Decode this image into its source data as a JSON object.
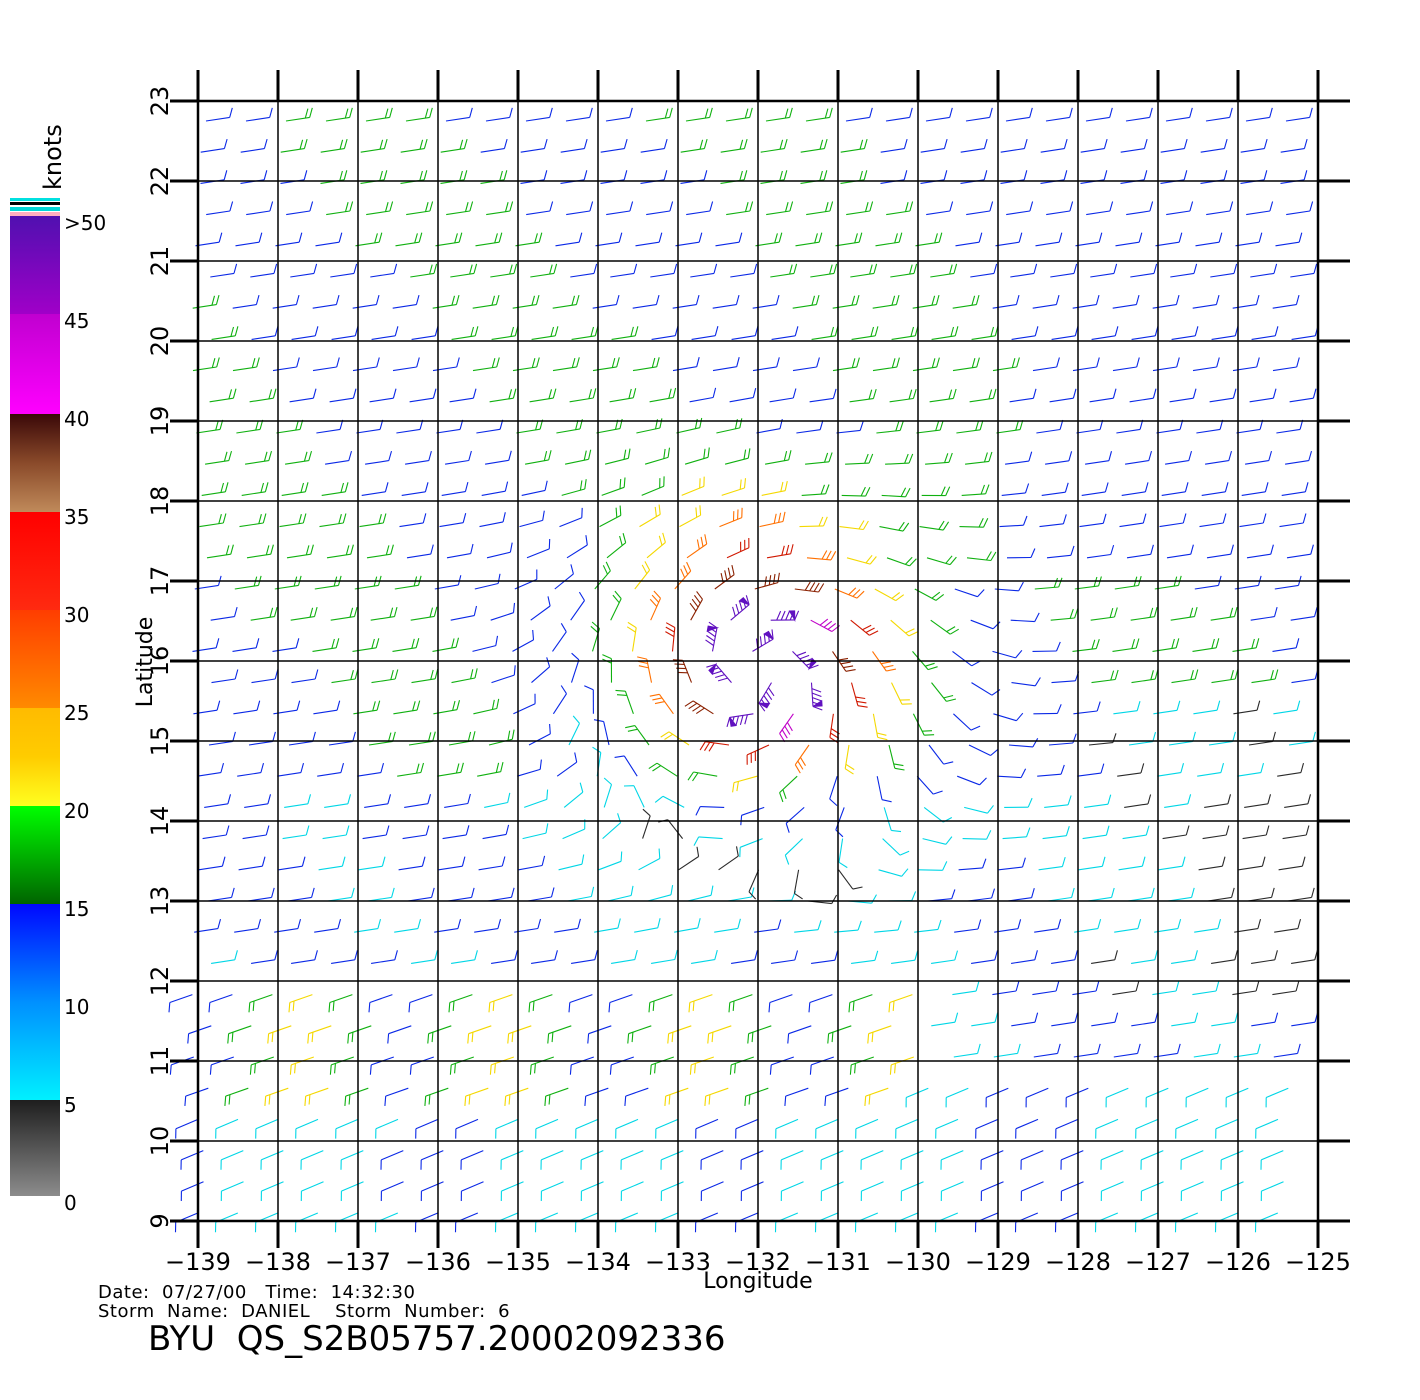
{
  "chart_data": {
    "type": "wind-barb-map",
    "xlabel": "Longitude",
    "ylabel": "Latitude",
    "xlim": [
      -139,
      -125
    ],
    "ylim": [
      9,
      23
    ],
    "x_ticks": [
      "−139",
      "−138",
      "−137",
      "−136",
      "−135",
      "−134",
      "−133",
      "−132",
      "−131",
      "−130",
      "−129",
      "−128",
      "−127",
      "−126",
      "−125"
    ],
    "y_ticks": [
      "9",
      "10",
      "11",
      "12",
      "13",
      "14",
      "15",
      "16",
      "17",
      "18",
      "19",
      "20",
      "21",
      "22",
      "23"
    ],
    "grid": true,
    "units": "knots",
    "colorbar": {
      "labels": [
        ">50",
        "45",
        "40",
        "35",
        "30",
        "25",
        "20",
        "15",
        "10",
        "5",
        "0"
      ],
      "range": [
        0,
        50
      ]
    },
    "storm_center": {
      "lon": -132,
      "lat": 15.9
    },
    "date_line": "Date:  07/27/00   Time:  14:32:30",
    "storm_line": "Storm  Name:  DANIEL    Storm  Number:  6",
    "title": "BYU  QS_S2B05757.20002092336"
  }
}
